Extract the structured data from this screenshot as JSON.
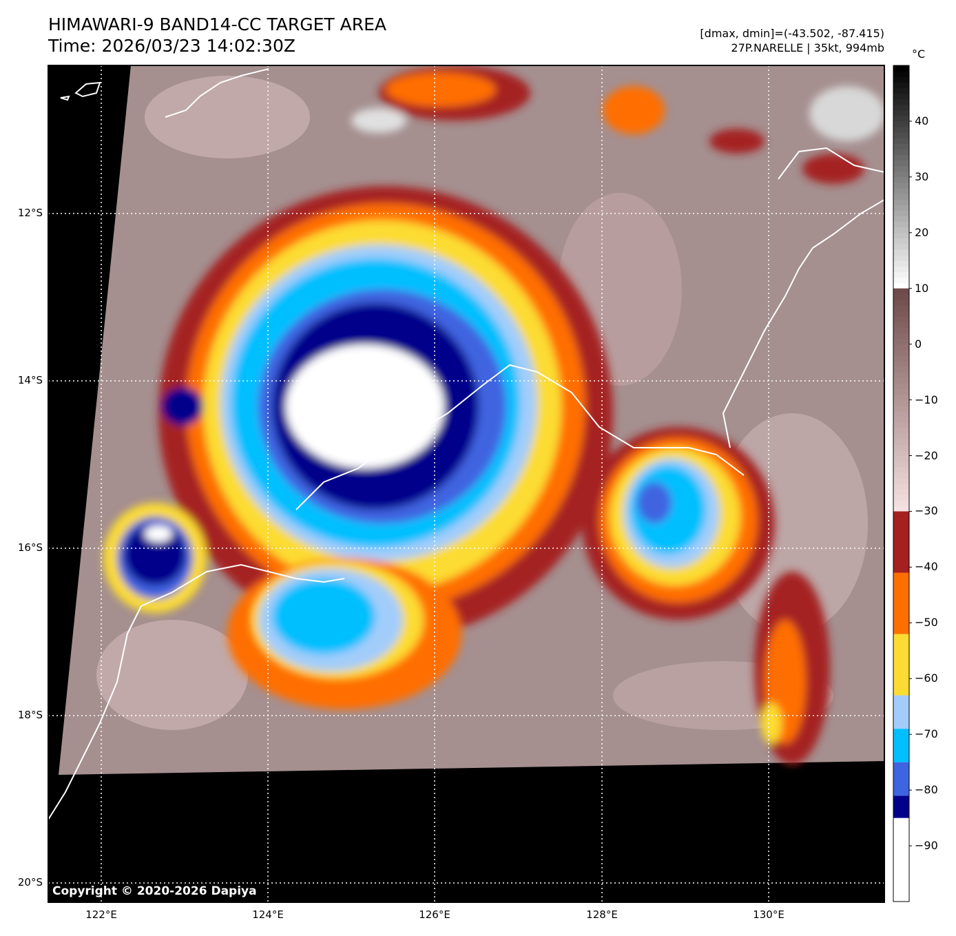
{
  "title": {
    "line1": "HIMAWARI-9 BAND14-CC TARGET AREA",
    "line2": "Time: 2026/03/23 14:02:30Z"
  },
  "info": {
    "dmax_dmin": "[dmax, dmin]=(-43.502, -87.415)",
    "storm": "27P.NARELLE | 35kt, 994mb"
  },
  "copyright": "Copyright © 2020-2026 Dapiya",
  "map": {
    "lat_labels": [
      "12°S",
      "14°S",
      "16°S",
      "18°S",
      "20°S"
    ],
    "lon_labels": [
      "122°E",
      "124°E",
      "126°E",
      "128°E",
      "130°E"
    ],
    "lat_range": [
      -20.2,
      -10.2
    ],
    "lon_range": [
      121.4,
      131.4
    ],
    "background_color": "#a08a8a",
    "nodata_color": "#000000",
    "coastline_color": "#ffffff",
    "gridline_color": "#ffffff"
  },
  "colorbar": {
    "unit": "°C",
    "ticks": [
      "40",
      "30",
      "20",
      "10",
      "0",
      "−10",
      "−20",
      "−30",
      "−40",
      "−50",
      "−60",
      "−70",
      "−80",
      "−90"
    ],
    "range": [
      -100,
      50
    ],
    "segments": [
      {
        "from": -100,
        "to": -85,
        "color": "#ffffff"
      },
      {
        "from": -85,
        "to": -81,
        "color": "#00008b"
      },
      {
        "from": -81,
        "to": -75,
        "color": "#3f64e0"
      },
      {
        "from": -75,
        "to": -69,
        "color": "#00bfff"
      },
      {
        "from": -69,
        "to": -63,
        "color": "#a2cdfa"
      },
      {
        "from": -63,
        "to": -52,
        "color": "#fcdc32"
      },
      {
        "from": -52,
        "to": -41,
        "color": "#ff6e00"
      },
      {
        "from": -41,
        "to": -30,
        "color": "#a52020"
      }
    ]
  }
}
